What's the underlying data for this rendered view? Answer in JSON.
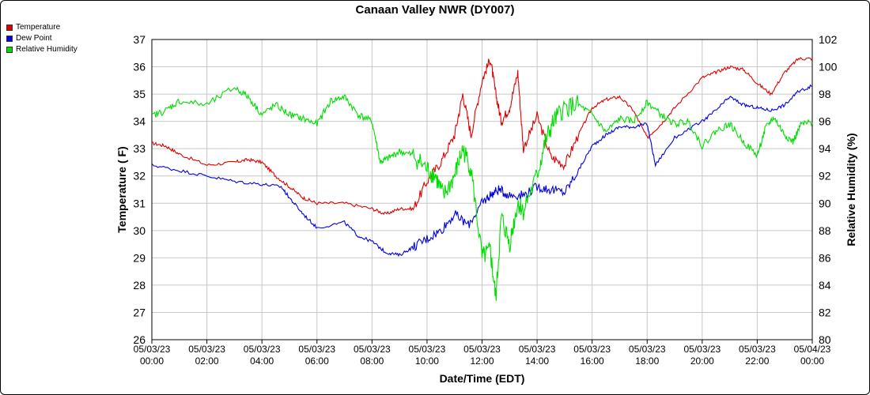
{
  "chart_data": {
    "type": "line",
    "title": "Canaan Valley NWR (DY007)",
    "xlabel": "Date/Time (EDT)",
    "ylabel": "Temperature ( F)",
    "y2label": "Relative Humidity (%)",
    "ylim": [
      26,
      37
    ],
    "y2lim": [
      80,
      102
    ],
    "grid": true,
    "legend_position": "top-left",
    "x_ticks": [
      [
        "05/03/23",
        "00:00"
      ],
      [
        "05/03/23",
        "02:00"
      ],
      [
        "05/03/23",
        "04:00"
      ],
      [
        "05/03/23",
        "06:00"
      ],
      [
        "05/03/23",
        "08:00"
      ],
      [
        "05/03/23",
        "10:00"
      ],
      [
        "05/03/23",
        "12:00"
      ],
      [
        "05/03/23",
        "14:00"
      ],
      [
        "05/03/23",
        "16:00"
      ],
      [
        "05/03/23",
        "18:00"
      ],
      [
        "05/03/23",
        "20:00"
      ],
      [
        "05/03/23",
        "22:00"
      ],
      [
        "05/04/23",
        "00:00"
      ]
    ],
    "y_ticks": [
      26,
      27,
      28,
      29,
      30,
      31,
      32,
      33,
      34,
      35,
      36,
      37
    ],
    "y2_ticks": [
      80,
      82,
      84,
      86,
      88,
      90,
      92,
      94,
      96,
      98,
      100,
      102
    ],
    "series": [
      {
        "name": "Temperature",
        "axis": "left",
        "color": "#e00000",
        "x": [
          0,
          0.5,
          1,
          2,
          3,
          3.5,
          4,
          4.5,
          5,
          5.5,
          6,
          7,
          8,
          8.5,
          9,
          9.5,
          10,
          10.5,
          11,
          11.3,
          11.6,
          12,
          12.3,
          12.5,
          12.7,
          13,
          13.3,
          13.5,
          14,
          14.5,
          15,
          15.5,
          16,
          16.5,
          17,
          17.5,
          18,
          18.5,
          19,
          20,
          20.5,
          21,
          21.5,
          22,
          22.5,
          23,
          23.5,
          24
        ],
        "values": [
          33.2,
          33.1,
          32.8,
          32.4,
          32.5,
          32.6,
          32.5,
          32.0,
          31.6,
          31.2,
          31.0,
          31.0,
          30.8,
          30.6,
          30.8,
          30.8,
          31.8,
          32.5,
          33.5,
          35.0,
          33.5,
          35.5,
          36.3,
          35.0,
          34.0,
          34.5,
          35.8,
          33.0,
          34.2,
          32.7,
          32.4,
          33.5,
          34.5,
          34.8,
          34.9,
          34.4,
          33.4,
          33.9,
          34.5,
          35.6,
          35.8,
          36.0,
          35.9,
          35.4,
          35.0,
          35.8,
          36.3,
          36.3
        ]
      },
      {
        "name": "Dew Point",
        "axis": "left",
        "color": "#0000e0",
        "x": [
          0,
          1,
          2,
          3,
          4,
          4.7,
          5,
          5.5,
          6,
          7,
          7.5,
          8,
          8.5,
          9,
          9.5,
          10,
          10.5,
          11,
          11.5,
          12,
          12.3,
          12.6,
          13,
          13.5,
          14,
          14.5,
          15,
          15.5,
          16,
          16.5,
          17,
          17.5,
          18,
          18.3,
          19,
          20,
          20.5,
          21,
          21.5,
          22,
          22.5,
          23,
          23.5,
          24
        ],
        "values": [
          32.4,
          32.2,
          32.0,
          31.8,
          31.7,
          31.6,
          31.2,
          30.6,
          30.1,
          30.3,
          29.8,
          29.6,
          29.2,
          29.1,
          29.4,
          29.7,
          30.0,
          30.6,
          30.2,
          31.0,
          31.3,
          31.5,
          31.3,
          31.3,
          31.6,
          31.5,
          31.4,
          32.2,
          33.1,
          33.5,
          33.8,
          33.8,
          33.9,
          32.4,
          33.4,
          34.0,
          34.4,
          34.9,
          34.6,
          34.5,
          34.4,
          34.6,
          35.1,
          35.3
        ]
      },
      {
        "name": "Relative Humidity",
        "axis": "right",
        "color": "#00dd00",
        "x": [
          0,
          0.5,
          1,
          2,
          3,
          3.5,
          4,
          4.5,
          5,
          5.5,
          6,
          6.5,
          7,
          7.5,
          8,
          8.3,
          8.6,
          9,
          9.5,
          10,
          10.3,
          10.6,
          11,
          11.3,
          11.6,
          12,
          12.3,
          12.5,
          12.7,
          13,
          13.3,
          13.5,
          14,
          14.3,
          14.6,
          15,
          15.5,
          16,
          16.5,
          17,
          17.5,
          18,
          18.5,
          19,
          19.5,
          20,
          20.5,
          21,
          21.5,
          22,
          22.3,
          22.6,
          23,
          23.3,
          23.6,
          24
        ],
        "values": [
          96.4,
          96.8,
          97.5,
          97.2,
          98.5,
          97.8,
          96.5,
          97.2,
          96.5,
          96.2,
          95.8,
          97.5,
          97.8,
          96.5,
          96.0,
          93.0,
          93.3,
          93.8,
          93.5,
          92.5,
          92.0,
          90.5,
          92.0,
          94.0,
          92.5,
          86.0,
          86.5,
          83.0,
          89.0,
          87.0,
          90.0,
          89.5,
          92.0,
          94.5,
          96.0,
          97.0,
          97.2,
          96.5,
          95.2,
          96.2,
          96.0,
          97.4,
          96.5,
          95.8,
          96.0,
          94.2,
          95.3,
          95.8,
          94.5,
          93.5,
          95.5,
          96.3,
          95.0,
          94.5,
          95.8,
          95.9
        ]
      }
    ]
  }
}
